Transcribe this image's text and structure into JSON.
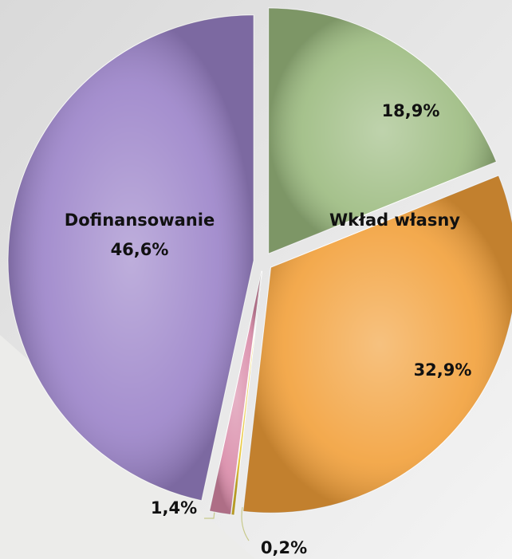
{
  "chart_data": {
    "type": "pie",
    "categories": [
      "Wkład własny",
      null,
      null,
      null,
      "Dofinansowanie"
    ],
    "values": [
      18.9,
      32.9,
      0.2,
      1.4,
      46.6
    ],
    "value_labels": [
      "18,9%",
      "32,9%",
      "0,2%",
      "1,4%",
      "46,6%"
    ],
    "colors": [
      "#9cbb80",
      "#f2a03a",
      "#e6c22a",
      "#d98aa8",
      "#9b83c9"
    ]
  }
}
